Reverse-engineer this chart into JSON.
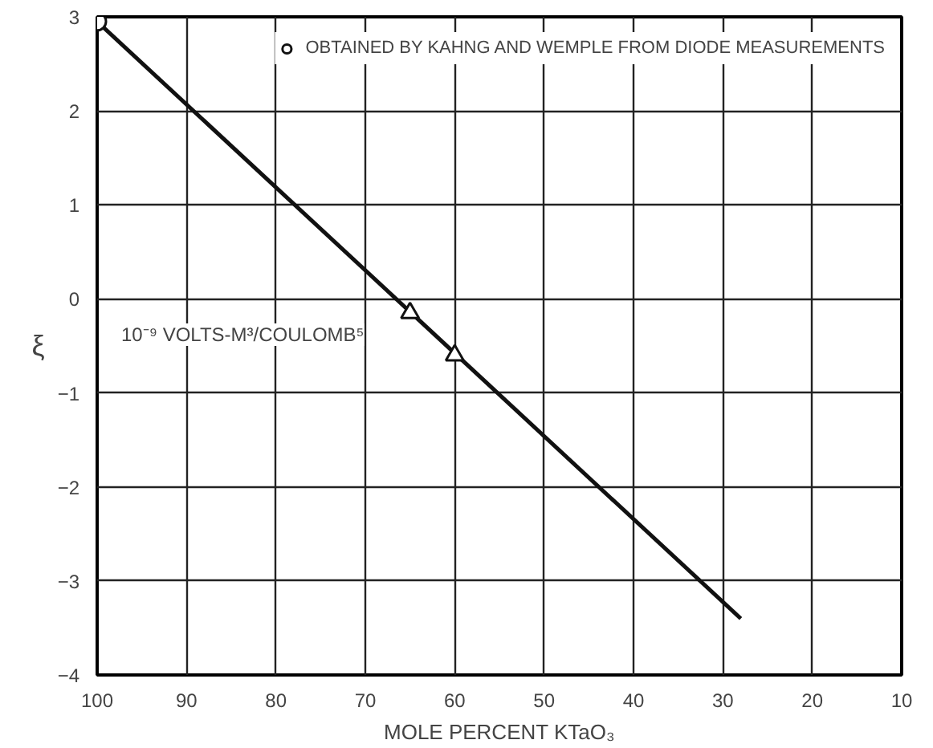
{
  "chart_data": {
    "type": "line",
    "xlabel": "MOLE PERCENT KTaO₃",
    "ylabel": "ξ",
    "xlim": [
      100,
      10
    ],
    "ylim": [
      -4,
      3
    ],
    "xticks": [
      100,
      90,
      80,
      70,
      60,
      50,
      40,
      30,
      20,
      10
    ],
    "yticks": [
      -4,
      -3,
      -2,
      -1,
      0,
      1,
      2,
      3
    ],
    "grid": true,
    "legend": "top right",
    "annotations": [
      "10⁻⁹ VOLTS-M³/COULOMB⁵"
    ],
    "series": [
      {
        "color": "#111111",
        "x": [
          100,
          28
        ],
        "values": [
          2.95,
          -3.4
        ],
        "marker": "none",
        "line_style": "solid"
      },
      {
        "type": "scatter",
        "name": "OBTAINED BY KAHNG AND WEMPLE FROM DIODE MEASUREMENTS",
        "color": "#111111",
        "x": [
          100
        ],
        "values": [
          2.95
        ],
        "marker": "circle"
      },
      {
        "type": "scatter",
        "color": "#111111",
        "x": [
          65,
          60
        ],
        "values": [
          -0.15,
          -0.6
        ],
        "marker": "triangle"
      }
    ]
  }
}
